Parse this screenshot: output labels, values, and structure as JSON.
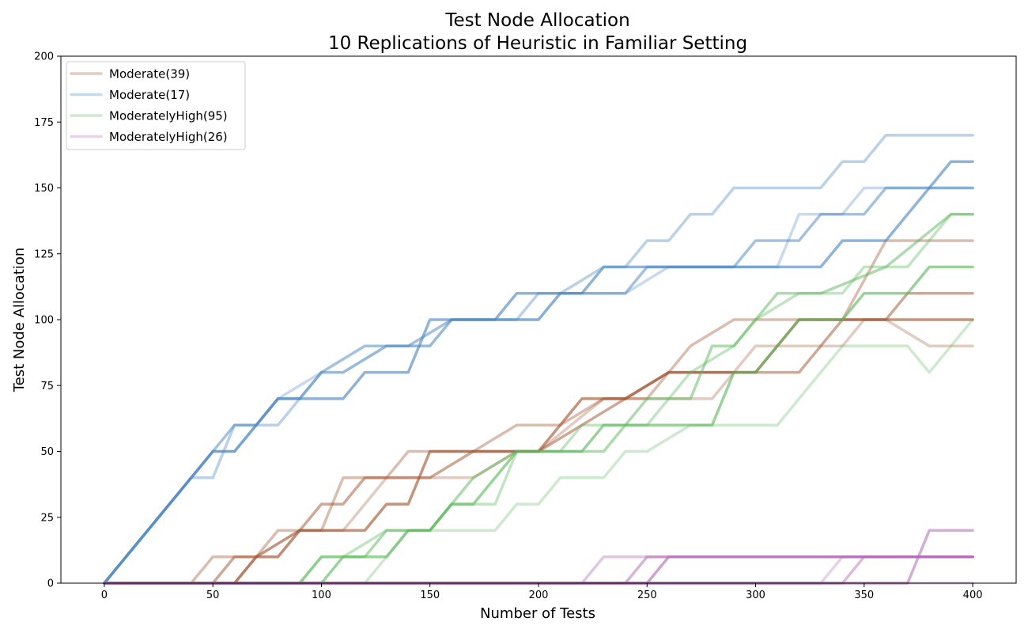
{
  "chart_data": {
    "type": "line",
    "title": "Test Node Allocation",
    "subtitle": "10 Replications of Heuristic in Familiar Setting",
    "xlabel": "Number of Tests",
    "ylabel": "Test Node Allocation",
    "xlim": [
      -20,
      420
    ],
    "ylim": [
      0,
      200
    ],
    "xticks": [
      0,
      50,
      100,
      150,
      200,
      250,
      300,
      350,
      400
    ],
    "yticks": [
      0,
      25,
      50,
      75,
      100,
      125,
      150,
      175,
      200
    ],
    "grid": false,
    "legend_position": "top-left",
    "series": [
      {
        "name": "Moderate(39)",
        "color": "#a0522d",
        "replications": [
          [
            [
              0,
              0
            ],
            [
              40,
              0
            ],
            [
              50,
              10
            ],
            [
              60,
              10
            ],
            [
              70,
              10
            ],
            [
              80,
              20
            ],
            [
              100,
              20
            ],
            [
              110,
              40
            ],
            [
              130,
              40
            ],
            [
              140,
              50
            ],
            [
              170,
              50
            ],
            [
              190,
              60
            ],
            [
              210,
              60
            ],
            [
              230,
              70
            ],
            [
              250,
              70
            ],
            [
              270,
              90
            ],
            [
              290,
              100
            ],
            [
              340,
              100
            ],
            [
              360,
              130
            ],
            [
              400,
              130
            ]
          ],
          [
            [
              0,
              0
            ],
            [
              50,
              0
            ],
            [
              60,
              10
            ],
            [
              80,
              10
            ],
            [
              90,
              20
            ],
            [
              100,
              30
            ],
            [
              110,
              30
            ],
            [
              120,
              40
            ],
            [
              150,
              40
            ],
            [
              170,
              50
            ],
            [
              200,
              50
            ],
            [
              220,
              60
            ],
            [
              260,
              80
            ],
            [
              300,
              80
            ],
            [
              320,
              80
            ],
            [
              340,
              100
            ],
            [
              360,
              100
            ],
            [
              370,
              110
            ],
            [
              400,
              110
            ]
          ],
          [
            [
              0,
              0
            ],
            [
              60,
              0
            ],
            [
              70,
              10
            ],
            [
              90,
              20
            ],
            [
              120,
              20
            ],
            [
              130,
              30
            ],
            [
              140,
              30
            ],
            [
              150,
              50
            ],
            [
              160,
              50
            ],
            [
              180,
              50
            ],
            [
              200,
              50
            ],
            [
              220,
              70
            ],
            [
              240,
              70
            ],
            [
              260,
              80
            ],
            [
              290,
              80
            ],
            [
              300,
              80
            ],
            [
              320,
              100
            ],
            [
              400,
              100
            ]
          ],
          [
            [
              0,
              0
            ],
            [
              60,
              0
            ],
            [
              70,
              10
            ],
            [
              80,
              10
            ],
            [
              90,
              20
            ],
            [
              110,
              20
            ],
            [
              120,
              30
            ],
            [
              130,
              40
            ],
            [
              170,
              40
            ],
            [
              190,
              50
            ],
            [
              200,
              50
            ],
            [
              230,
              70
            ],
            [
              270,
              70
            ],
            [
              280,
              70
            ],
            [
              300,
              90
            ],
            [
              320,
              90
            ],
            [
              340,
              90
            ],
            [
              350,
              100
            ],
            [
              360,
              100
            ],
            [
              380,
              90
            ],
            [
              400,
              90
            ]
          ]
        ]
      },
      {
        "name": "Moderate(17)",
        "color": "#4a86c0",
        "replications": [
          [
            [
              0,
              0
            ],
            [
              40,
              40
            ],
            [
              50,
              40
            ],
            [
              60,
              60
            ],
            [
              80,
              60
            ],
            [
              100,
              80
            ],
            [
              110,
              80
            ],
            [
              130,
              90
            ],
            [
              150,
              90
            ],
            [
              160,
              100
            ],
            [
              190,
              100
            ],
            [
              200,
              110
            ],
            [
              210,
              110
            ],
            [
              230,
              120
            ],
            [
              240,
              120
            ],
            [
              250,
              130
            ],
            [
              260,
              130
            ],
            [
              270,
              140
            ],
            [
              280,
              140
            ],
            [
              290,
              150
            ],
            [
              330,
              150
            ],
            [
              340,
              160
            ],
            [
              350,
              160
            ],
            [
              360,
              170
            ],
            [
              400,
              170
            ]
          ],
          [
            [
              0,
              0
            ],
            [
              50,
              50
            ],
            [
              60,
              60
            ],
            [
              70,
              60
            ],
            [
              80,
              70
            ],
            [
              90,
              70
            ],
            [
              100,
              80
            ],
            [
              120,
              90
            ],
            [
              140,
              90
            ],
            [
              160,
              100
            ],
            [
              200,
              100
            ],
            [
              210,
              110
            ],
            [
              240,
              110
            ],
            [
              250,
              120
            ],
            [
              290,
              120
            ],
            [
              300,
              130
            ],
            [
              320,
              130
            ],
            [
              330,
              140
            ],
            [
              350,
              140
            ],
            [
              360,
              150
            ],
            [
              400,
              150
            ]
          ],
          [
            [
              0,
              0
            ],
            [
              50,
              50
            ],
            [
              60,
              50
            ],
            [
              70,
              60
            ],
            [
              80,
              70
            ],
            [
              110,
              70
            ],
            [
              120,
              80
            ],
            [
              140,
              80
            ],
            [
              150,
              100
            ],
            [
              180,
              100
            ],
            [
              190,
              110
            ],
            [
              220,
              110
            ],
            [
              230,
              120
            ],
            [
              300,
              120
            ],
            [
              310,
              120
            ],
            [
              330,
              120
            ],
            [
              340,
              130
            ],
            [
              360,
              130
            ],
            [
              370,
              140
            ],
            [
              390,
              160
            ],
            [
              400,
              160
            ]
          ],
          [
            [
              0,
              0
            ],
            [
              50,
              50
            ],
            [
              60,
              50
            ],
            [
              70,
              60
            ],
            [
              80,
              70
            ],
            [
              100,
              80
            ],
            [
              110,
              80
            ],
            [
              130,
              90
            ],
            [
              150,
              90
            ],
            [
              160,
              100
            ],
            [
              190,
              100
            ],
            [
              200,
              100
            ],
            [
              210,
              110
            ],
            [
              230,
              110
            ],
            [
              240,
              110
            ],
            [
              260,
              120
            ],
            [
              310,
              120
            ],
            [
              320,
              140
            ],
            [
              340,
              140
            ],
            [
              350,
              150
            ],
            [
              400,
              150
            ]
          ]
        ]
      },
      {
        "name": "ModeratelyHigh(95)",
        "color": "#5cb85c",
        "replications": [
          [
            [
              0,
              0
            ],
            [
              90,
              0
            ],
            [
              100,
              10
            ],
            [
              110,
              10
            ],
            [
              130,
              20
            ],
            [
              140,
              20
            ],
            [
              150,
              20
            ],
            [
              160,
              30
            ],
            [
              180,
              30
            ],
            [
              190,
              50
            ],
            [
              210,
              50
            ],
            [
              220,
              60
            ],
            [
              250,
              60
            ],
            [
              270,
              80
            ],
            [
              290,
              90
            ],
            [
              300,
              100
            ],
            [
              320,
              110
            ],
            [
              340,
              110
            ],
            [
              350,
              120
            ],
            [
              370,
              120
            ],
            [
              390,
              140
            ],
            [
              400,
              140
            ]
          ],
          [
            [
              0,
              0
            ],
            [
              90,
              0
            ],
            [
              100,
              10
            ],
            [
              120,
              10
            ],
            [
              130,
              20
            ],
            [
              140,
              20
            ],
            [
              150,
              20
            ],
            [
              170,
              40
            ],
            [
              190,
              50
            ],
            [
              230,
              50
            ],
            [
              250,
              70
            ],
            [
              270,
              70
            ],
            [
              280,
              90
            ],
            [
              290,
              90
            ],
            [
              310,
              110
            ],
            [
              330,
              110
            ],
            [
              360,
              120
            ],
            [
              390,
              140
            ],
            [
              400,
              140
            ]
          ],
          [
            [
              0,
              0
            ],
            [
              100,
              0
            ],
            [
              110,
              10
            ],
            [
              130,
              10
            ],
            [
              140,
              20
            ],
            [
              150,
              20
            ],
            [
              160,
              30
            ],
            [
              170,
              30
            ],
            [
              180,
              40
            ],
            [
              190,
              50
            ],
            [
              220,
              50
            ],
            [
              230,
              60
            ],
            [
              250,
              60
            ],
            [
              270,
              60
            ],
            [
              280,
              60
            ],
            [
              290,
              80
            ],
            [
              300,
              80
            ],
            [
              320,
              100
            ],
            [
              340,
              100
            ],
            [
              350,
              110
            ],
            [
              370,
              110
            ],
            [
              380,
              120
            ],
            [
              400,
              120
            ]
          ],
          [
            [
              0,
              0
            ],
            [
              120,
              0
            ],
            [
              140,
              20
            ],
            [
              170,
              20
            ],
            [
              180,
              20
            ],
            [
              190,
              30
            ],
            [
              200,
              30
            ],
            [
              210,
              40
            ],
            [
              230,
              40
            ],
            [
              240,
              50
            ],
            [
              250,
              50
            ],
            [
              270,
              60
            ],
            [
              290,
              60
            ],
            [
              310,
              60
            ],
            [
              330,
              80
            ],
            [
              340,
              90
            ],
            [
              370,
              90
            ],
            [
              380,
              80
            ],
            [
              400,
              100
            ]
          ]
        ]
      },
      {
        "name": "ModeratelyHigh(26)",
        "color": "#b06ab3",
        "replications": [
          [
            [
              0,
              0
            ],
            [
              220,
              0
            ],
            [
              230,
              10
            ],
            [
              250,
              10
            ],
            [
              400,
              10
            ]
          ],
          [
            [
              0,
              0
            ],
            [
              240,
              0
            ],
            [
              250,
              10
            ],
            [
              400,
              10
            ]
          ],
          [
            [
              0,
              0
            ],
            [
              250,
              0
            ],
            [
              260,
              10
            ],
            [
              400,
              10
            ]
          ],
          [
            [
              0,
              0
            ],
            [
              330,
              0
            ],
            [
              340,
              10
            ],
            [
              400,
              10
            ]
          ],
          [
            [
              0,
              0
            ],
            [
              340,
              0
            ],
            [
              350,
              10
            ],
            [
              400,
              10
            ]
          ],
          [
            [
              0,
              0
            ],
            [
              370,
              0
            ],
            [
              380,
              20
            ],
            [
              400,
              20
            ]
          ],
          [
            [
              0,
              0
            ],
            [
              400,
              0
            ]
          ]
        ]
      }
    ]
  }
}
